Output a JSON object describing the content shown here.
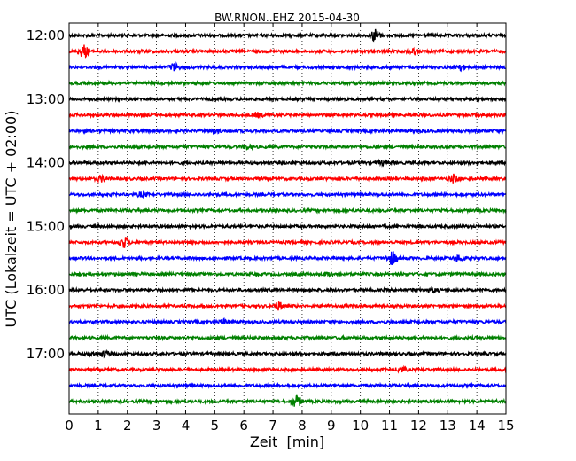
{
  "chart_data": {
    "type": "line",
    "title": "BW.RNON..EHZ 2015-04-30",
    "xlabel": "Zeit  [min]",
    "ylabel": "UTC (Lokalzeit = UTC + 02:00)",
    "xlim": [
      0,
      15
    ],
    "x_ticks": [
      "0",
      "1",
      "2",
      "3",
      "4",
      "5",
      "6",
      "7",
      "8",
      "9",
      "10",
      "11",
      "12",
      "13",
      "14",
      "15"
    ],
    "y_tick_labels": [
      "12:00",
      "13:00",
      "14:00",
      "15:00",
      "16:00",
      "17:00"
    ],
    "grid": {
      "vertical_dotted": true,
      "horizontal": false
    },
    "color_cycle": [
      "#000000",
      "#ff0000",
      "#0000ff",
      "#008000"
    ],
    "series": [
      {
        "start": "12:00",
        "color": "#000000",
        "events": [
          {
            "t": 10.5,
            "amp": 1.0
          }
        ]
      },
      {
        "start": "12:15",
        "color": "#ff0000",
        "events": [
          {
            "t": 0.5,
            "amp": 1.0
          },
          {
            "t": 11.8,
            "amp": 0.4
          }
        ]
      },
      {
        "start": "12:30",
        "color": "#0000ff",
        "events": [
          {
            "t": 3.6,
            "amp": 0.6
          },
          {
            "t": 13.4,
            "amp": 0.5
          }
        ]
      },
      {
        "start": "12:45",
        "color": "#008000",
        "events": []
      },
      {
        "start": "13:00",
        "color": "#000000",
        "events": []
      },
      {
        "start": "13:15",
        "color": "#ff0000",
        "events": [
          {
            "t": 6.5,
            "amp": 0.3
          }
        ]
      },
      {
        "start": "13:30",
        "color": "#0000ff",
        "events": [
          {
            "t": 5.0,
            "amp": 0.3
          }
        ]
      },
      {
        "start": "13:45",
        "color": "#008000",
        "events": [
          {
            "t": 6.1,
            "amp": 0.3
          }
        ]
      },
      {
        "start": "14:00",
        "color": "#000000",
        "events": [
          {
            "t": 10.7,
            "amp": 0.3
          }
        ]
      },
      {
        "start": "14:15",
        "color": "#ff0000",
        "events": [
          {
            "t": 1.1,
            "amp": 0.4
          },
          {
            "t": 13.2,
            "amp": 0.6
          }
        ]
      },
      {
        "start": "14:30",
        "color": "#0000ff",
        "events": [
          {
            "t": 2.5,
            "amp": 0.3
          }
        ]
      },
      {
        "start": "14:45",
        "color": "#008000",
        "events": []
      },
      {
        "start": "15:00",
        "color": "#000000",
        "events": []
      },
      {
        "start": "15:15",
        "color": "#ff0000",
        "events": [
          {
            "t": 1.9,
            "amp": 0.9
          }
        ]
      },
      {
        "start": "15:30",
        "color": "#0000ff",
        "events": [
          {
            "t": 11.1,
            "amp": 1.1
          },
          {
            "t": 13.4,
            "amp": 0.5
          }
        ]
      },
      {
        "start": "15:45",
        "color": "#008000",
        "events": [
          {
            "t": 8.9,
            "amp": 0.3
          }
        ]
      },
      {
        "start": "16:00",
        "color": "#000000",
        "events": [
          {
            "t": 12.5,
            "amp": 0.3
          }
        ]
      },
      {
        "start": "16:15",
        "color": "#ff0000",
        "events": [
          {
            "t": 7.2,
            "amp": 0.6
          }
        ]
      },
      {
        "start": "16:30",
        "color": "#0000ff",
        "events": [
          {
            "t": 5.3,
            "amp": 0.3
          }
        ]
      },
      {
        "start": "16:45",
        "color": "#008000",
        "events": []
      },
      {
        "start": "17:00",
        "color": "#000000",
        "events": [
          {
            "t": 0.8,
            "amp": 0.3
          },
          {
            "t": 1.2,
            "amp": 0.4
          }
        ]
      },
      {
        "start": "17:15",
        "color": "#ff0000",
        "events": [
          {
            "t": 11.4,
            "amp": 0.4
          }
        ]
      },
      {
        "start": "17:30",
        "color": "#0000ff",
        "events": []
      },
      {
        "start": "17:45",
        "color": "#008000",
        "events": [
          {
            "t": 7.8,
            "amp": 1.0
          }
        ]
      }
    ]
  }
}
